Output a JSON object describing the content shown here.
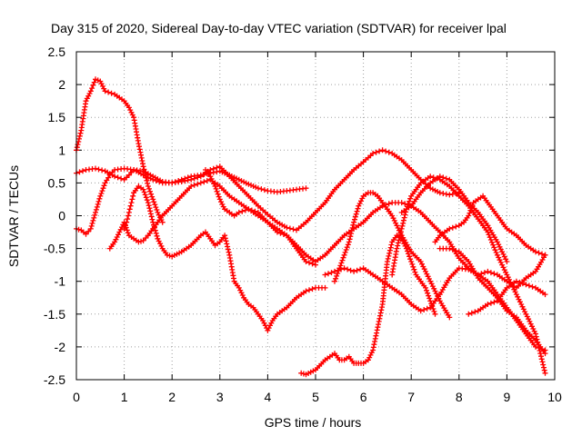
{
  "chart_data": {
    "type": "scatter",
    "title": "Day 315 of 2020, Sidereal Day-to-day VTEC variation (SDTVAR) for receiver lpal",
    "xlabel": "GPS time / hours",
    "ylabel": "SDTVAR / TECUs",
    "xlim": [
      0,
      10
    ],
    "ylim": [
      -2.5,
      2.5
    ],
    "xticks": [
      "0",
      "1",
      "2",
      "3",
      "4",
      "5",
      "6",
      "7",
      "8",
      "9",
      "10"
    ],
    "yticks": [
      "2.5",
      "2",
      "1.5",
      "1",
      "0.5",
      "0",
      "-0.5",
      "-1",
      "-1.5",
      "-2",
      "-2.5"
    ],
    "grid": true,
    "legend": "none",
    "marker": "plus",
    "color": "#ff0000",
    "series": [
      {
        "x": [
          0,
          0.1,
          0.2,
          0.3,
          0.4,
          0.5,
          0.6,
          0.8,
          1.0,
          1.1,
          1.2,
          1.3,
          1.4,
          1.5,
          1.6,
          1.7,
          1.8
        ],
        "y": [
          1.0,
          1.3,
          1.75,
          1.9,
          2.08,
          2.05,
          1.9,
          1.85,
          1.75,
          1.65,
          1.5,
          1.1,
          0.75,
          0.45,
          0.25,
          0.05,
          -0.1
        ]
      },
      {
        "x": [
          0,
          0.2,
          0.4,
          0.6,
          0.8,
          1.0,
          1.1,
          1.2,
          1.4,
          1.6,
          1.8,
          2.0,
          2.2,
          2.4,
          2.6,
          2.8,
          3.0,
          3.2,
          3.4,
          3.6,
          3.8,
          4.0,
          4.2,
          4.4,
          4.6,
          4.8
        ],
        "y": [
          0.65,
          0.7,
          0.72,
          0.68,
          0.6,
          0.55,
          0.62,
          0.7,
          0.68,
          0.6,
          0.52,
          0.5,
          0.55,
          0.6,
          0.62,
          0.65,
          0.68,
          0.62,
          0.55,
          0.48,
          0.42,
          0.38,
          0.36,
          0.38,
          0.4,
          0.42
        ]
      },
      {
        "x": [
          0,
          0.1,
          0.2,
          0.3,
          0.4,
          0.5,
          0.6,
          0.7,
          0.8,
          1.0,
          1.2,
          1.4,
          1.6,
          1.8,
          2.0,
          2.2,
          2.4,
          2.6,
          2.8,
          3.0,
          3.2,
          3.4,
          3.6,
          3.8,
          4.0,
          4.2,
          4.4,
          4.6,
          4.8,
          5.0,
          5.2,
          5.4,
          5.6,
          5.8,
          6.0,
          6.2,
          6.4,
          6.6,
          6.8,
          7.0,
          7.2,
          7.4,
          7.6,
          7.8,
          8.0
        ],
        "y": [
          -0.2,
          -0.22,
          -0.28,
          -0.2,
          0.05,
          0.3,
          0.5,
          0.62,
          0.7,
          0.72,
          0.7,
          0.62,
          0.55,
          0.5,
          0.5,
          0.52,
          0.55,
          0.6,
          0.7,
          0.75,
          0.6,
          0.45,
          0.3,
          0.15,
          0.02,
          -0.1,
          -0.18,
          -0.22,
          -0.1,
          0.05,
          0.2,
          0.4,
          0.55,
          0.7,
          0.82,
          0.95,
          1.0,
          0.95,
          0.85,
          0.7,
          0.55,
          0.42,
          0.35,
          0.32,
          0.35
        ]
      },
      {
        "x": [
          0.7,
          0.8,
          0.9,
          1.0,
          1.1,
          1.2,
          1.3,
          1.4,
          1.5,
          1.6,
          1.7,
          1.8,
          2.0,
          2.2,
          2.4,
          2.6,
          2.8,
          3.0,
          3.2,
          3.4,
          3.6,
          3.8,
          4.0,
          4.2,
          4.4,
          4.6,
          4.8,
          5.0,
          5.2,
          5.4,
          5.6,
          5.8,
          6.0,
          6.2,
          6.4,
          6.6,
          6.8,
          7.0,
          7.2,
          7.4,
          7.6,
          7.8,
          8.0,
          8.2,
          8.4,
          8.6,
          8.8,
          9.0,
          9.2,
          9.4,
          9.6,
          9.8
        ],
        "y": [
          -0.5,
          -0.4,
          -0.25,
          -0.1,
          -0.3,
          -0.35,
          -0.4,
          -0.38,
          -0.3,
          -0.2,
          -0.1,
          0.0,
          0.15,
          0.3,
          0.45,
          0.5,
          0.55,
          0.45,
          0.3,
          0.2,
          0.1,
          0.0,
          -0.1,
          -0.2,
          -0.3,
          -0.45,
          -0.6,
          -0.7,
          -0.6,
          -0.45,
          -0.3,
          -0.2,
          -0.1,
          0.05,
          0.15,
          0.2,
          0.2,
          0.15,
          0.05,
          -0.1,
          -0.25,
          -0.4,
          -0.65,
          -0.8,
          -0.9,
          -1.0,
          -1.2,
          -1.4,
          -1.6,
          -1.8,
          -2.0,
          -2.05
        ]
      },
      {
        "x": [
          1.0,
          1.05,
          1.1,
          1.15,
          1.2,
          1.3,
          1.4,
          1.5,
          1.6,
          1.7,
          1.8,
          1.9,
          2.0,
          2.2,
          2.4,
          2.6,
          2.7,
          2.8,
          2.9,
          3.0,
          3.1,
          3.2,
          3.3,
          3.4,
          3.5,
          3.6,
          3.7,
          3.8,
          3.9,
          4.0,
          4.1,
          4.2,
          4.4,
          4.6,
          4.8,
          5.0,
          5.2
        ],
        "y": [
          -0.2,
          -0.1,
          0.05,
          0.2,
          0.35,
          0.45,
          0.4,
          0.2,
          -0.1,
          -0.35,
          -0.5,
          -0.6,
          -0.62,
          -0.55,
          -0.45,
          -0.3,
          -0.25,
          -0.35,
          -0.45,
          -0.4,
          -0.3,
          -0.6,
          -1.0,
          -1.1,
          -1.25,
          -1.35,
          -1.4,
          -1.5,
          -1.6,
          -1.75,
          -1.6,
          -1.5,
          -1.4,
          -1.25,
          -1.15,
          -1.1,
          -1.1
        ]
      },
      {
        "x": [
          2.7,
          2.8,
          2.9,
          3.0,
          3.1,
          3.2,
          3.3,
          3.4,
          3.6,
          3.8,
          4.0,
          4.2,
          4.4,
          4.6,
          4.8,
          5.0
        ],
        "y": [
          0.7,
          0.6,
          0.45,
          0.25,
          0.1,
          0.05,
          0.0,
          0.05,
          0.1,
          0.05,
          -0.1,
          -0.25,
          -0.3,
          -0.5,
          -0.7,
          -0.75
        ]
      },
      {
        "x": [
          4.7,
          4.8,
          5.0,
          5.2,
          5.3,
          5.4,
          5.5,
          5.6,
          5.7,
          5.8,
          5.9,
          6.0,
          6.1,
          6.2,
          6.3,
          6.4,
          6.5,
          6.6,
          6.7,
          6.8,
          6.9,
          7.0,
          7.1,
          7.2,
          7.3,
          7.4,
          7.5
        ],
        "y": [
          -2.4,
          -2.42,
          -2.35,
          -2.2,
          -2.15,
          -2.1,
          -2.2,
          -2.2,
          -2.15,
          -2.25,
          -2.25,
          -2.25,
          -2.2,
          -2.05,
          -1.7,
          -1.35,
          -0.7,
          -0.4,
          -0.3,
          -0.35,
          -0.5,
          -0.7,
          -0.9,
          -1.0,
          -1.1,
          -1.3,
          -1.5
        ]
      },
      {
        "x": [
          5.4,
          5.5,
          5.6,
          5.7,
          5.8,
          5.9,
          6.0,
          6.1,
          6.2,
          6.3,
          6.4,
          6.6,
          6.8,
          7.0,
          7.2,
          7.4,
          7.6,
          7.8
        ],
        "y": [
          -1.0,
          -0.8,
          -0.6,
          -0.4,
          -0.1,
          0.15,
          0.3,
          0.35,
          0.35,
          0.3,
          0.2,
          0.0,
          -0.3,
          -0.55,
          -0.7,
          -1.0,
          -1.3,
          -1.55
        ]
      },
      {
        "x": [
          5.2,
          5.4,
          5.6,
          5.8,
          6.0,
          6.2,
          6.4,
          6.6,
          6.8,
          7.0,
          7.2,
          7.4,
          7.6,
          7.8,
          8.0,
          8.2,
          8.4,
          8.6,
          8.8,
          9.0,
          9.2,
          9.4,
          9.6,
          9.8
        ],
        "y": [
          -0.9,
          -0.85,
          -0.8,
          -0.85,
          -0.8,
          -0.9,
          -1.0,
          -1.1,
          -1.2,
          -1.35,
          -1.45,
          -1.4,
          -1.2,
          -0.95,
          -0.8,
          -0.82,
          -0.9,
          -0.85,
          -0.9,
          -1.0,
          -1.1,
          -0.95,
          -0.85,
          -0.6
        ]
      },
      {
        "x": [
          6.6,
          6.7,
          6.8,
          6.9,
          7.0,
          7.2,
          7.4,
          7.6,
          7.8,
          8.0,
          8.2,
          8.4,
          8.6,
          8.8,
          9.0,
          9.2,
          9.4,
          9.6,
          9.8
        ],
        "y": [
          -0.9,
          -0.5,
          -0.2,
          0.1,
          0.3,
          0.5,
          0.6,
          0.55,
          0.45,
          0.3,
          0.15,
          -0.05,
          -0.25,
          -0.6,
          -0.9,
          -1.2,
          -1.5,
          -1.8,
          -2.4
        ]
      },
      {
        "x": [
          8.2,
          8.4,
          8.6,
          8.8,
          9.0,
          9.2,
          9.4,
          9.6,
          9.8
        ],
        "y": [
          -1.5,
          -1.45,
          -1.35,
          -1.3,
          -1.1,
          -1.0,
          -1.05,
          -1.1,
          -1.2
        ]
      },
      {
        "x": [
          7.5,
          7.6,
          7.8,
          8.0,
          8.1,
          8.2,
          8.3,
          8.4,
          8.5,
          8.6,
          8.8,
          9.0,
          9.2,
          9.4,
          9.6,
          9.8
        ],
        "y": [
          -0.4,
          -0.3,
          -0.2,
          -0.15,
          -0.1,
          0.0,
          0.2,
          0.25,
          0.3,
          0.2,
          0.0,
          -0.2,
          -0.3,
          -0.45,
          -0.55,
          -0.6
        ]
      },
      {
        "x": [
          6.8,
          7.0,
          7.2,
          7.4,
          7.6,
          7.8,
          8.0,
          8.2,
          8.4,
          8.6,
          8.8,
          9.0
        ],
        "y": [
          0.05,
          0.15,
          0.35,
          0.5,
          0.6,
          0.55,
          0.4,
          0.2,
          0.05,
          -0.15,
          -0.4,
          -0.7
        ]
      },
      {
        "x": [
          7.6,
          7.8,
          8.0,
          8.2,
          8.4,
          8.6,
          8.8,
          9.0,
          9.2,
          9.4,
          9.6,
          9.8
        ],
        "y": [
          -0.5,
          -0.5,
          -0.55,
          -0.7,
          -0.95,
          -1.1,
          -1.25,
          -1.45,
          -1.55,
          -1.75,
          -1.9,
          -2.1
        ]
      }
    ]
  }
}
